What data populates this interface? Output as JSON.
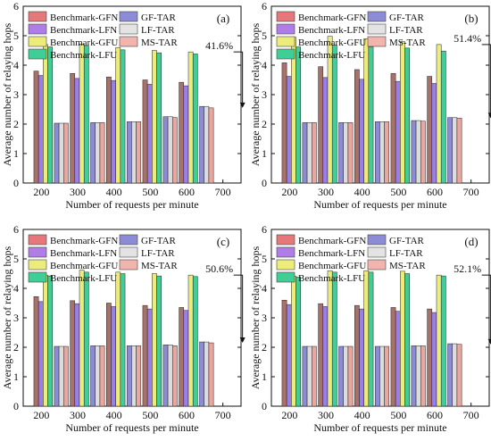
{
  "legend": {
    "labels": [
      "Benchmark-GFN",
      "Benchmark-LFN",
      "Benchmark-GFU",
      "Benchmark-LFU",
      "GF-TAR",
      "LF-TAR",
      "MS-TAR"
    ],
    "colors": [
      "#e6777a",
      "#b07ce6",
      "#ecec7a",
      "#3fcf96",
      "#8c8cd6",
      "#e3e3e3",
      "#f2b5ad"
    ]
  },
  "chart_data": [
    {
      "type": "bar",
      "panel_label": "(a)",
      "xlabel": "Number of requests per minute",
      "ylabel": "Average number of relaying hops",
      "categories": [
        "200",
        "300",
        "400",
        "500",
        "600",
        "700"
      ],
      "ylim": [
        0,
        6
      ],
      "yticks": [
        0,
        1,
        2,
        3,
        4,
        5,
        6
      ],
      "annotation": "41.6%",
      "bar_colors": [
        "#a6726a",
        "#9b7fe8",
        "#ecec7a",
        "#3fcf96",
        "#8c8cd6",
        "#dcdcdc",
        "#e8a7a0"
      ],
      "group_series": [
        [
          "Benchmark-GFN",
          "Benchmark-LFN",
          "Benchmark-GFU",
          "Benchmark-LFU"
        ],
        [
          "GF-TAR",
          "LF-TAR",
          "MS-TAR"
        ],
        [
          "GF-TAR",
          "LF-TAR",
          "MS-TAR"
        ],
        [
          "Benchmark-GFN",
          "Benchmark-LFN",
          "Benchmark-GFU",
          "Benchmark-LFU",
          "GF-TAR",
          "LF-TAR",
          "MS-TAR"
        ],
        [
          "Benchmark-GFN",
          "Benchmark-LFN",
          "Benchmark-GFU",
          "Benchmark-LFU",
          "GF-TAR",
          "LF-TAR",
          "MS-TAR"
        ],
        [
          "Benchmark-GFN",
          "Benchmark-LFN",
          "Benchmark-GFU",
          "Benchmark-LFU",
          "GF-TAR",
          "LF-TAR",
          "MS-TAR"
        ]
      ],
      "group_values": [
        [
          3.8,
          3.65,
          4.7,
          4.62
        ],
        [
          2.03,
          2.03,
          2.03
        ],
        [
          2.05,
          2.05,
          2.05
        ],
        [
          3.6,
          3.48,
          4.6,
          4.52,
          2.08,
          2.08,
          2.08
        ],
        [
          3.5,
          3.35,
          4.5,
          4.42,
          2.25,
          2.25,
          2.22
        ],
        [
          3.42,
          3.3,
          4.45,
          4.38,
          2.6,
          2.6,
          2.55
        ]
      ],
      "extra_groups": [
        {
          "series": [
            "Benchmark-GFN",
            "Benchmark-LFN",
            "Benchmark-GFU",
            "Benchmark-LFU"
          ],
          "values": [
            3.72,
            3.55,
            4.72,
            4.65
          ]
        }
      ]
    },
    {
      "type": "bar",
      "panel_label": "(b)",
      "xlabel": "Number of requests per minute",
      "ylabel": "Average number of relaying hops",
      "categories": [
        "200",
        "300",
        "400",
        "500",
        "600",
        "700"
      ],
      "ylim": [
        0,
        6
      ],
      "yticks": [
        0,
        1,
        2,
        3,
        4,
        5,
        6
      ],
      "annotation": "51.4%",
      "bar_colors": [
        "#a6726a",
        "#9b7fe8",
        "#ecec7a",
        "#3fcf96",
        "#8c8cd6",
        "#dcdcdc",
        "#e8a7a0"
      ],
      "group_series": [
        [
          "Benchmark-GFN",
          "Benchmark-LFN",
          "Benchmark-GFU",
          "Benchmark-LFU"
        ],
        [
          "GF-TAR",
          "LF-TAR",
          "MS-TAR"
        ],
        [
          "GF-TAR",
          "LF-TAR",
          "MS-TAR"
        ],
        [
          "Benchmark-GFN",
          "Benchmark-LFN",
          "Benchmark-GFU",
          "Benchmark-LFU",
          "GF-TAR",
          "LF-TAR",
          "MS-TAR"
        ],
        [
          "Benchmark-GFN",
          "Benchmark-LFN",
          "Benchmark-GFU",
          "Benchmark-LFU",
          "GF-TAR",
          "LF-TAR",
          "MS-TAR"
        ],
        [
          "Benchmark-GFN",
          "Benchmark-LFN",
          "Benchmark-GFU",
          "Benchmark-LFU",
          "GF-TAR",
          "LF-TAR",
          "MS-TAR"
        ]
      ],
      "group_values": [
        [
          4.08,
          3.62,
          4.95,
          4.62
        ],
        [
          2.05,
          2.05,
          2.05
        ],
        [
          2.05,
          2.05,
          2.05
        ],
        [
          3.85,
          3.52,
          4.9,
          4.62,
          2.08,
          2.08,
          2.08
        ],
        [
          3.72,
          3.45,
          4.8,
          4.58,
          2.12,
          2.12,
          2.1
        ],
        [
          3.62,
          3.38,
          4.7,
          4.48,
          2.22,
          2.22,
          2.2
        ]
      ],
      "extra_groups": [
        {
          "series": [
            "Benchmark-GFN",
            "Benchmark-LFN",
            "Benchmark-GFU",
            "Benchmark-LFU"
          ],
          "values": [
            3.95,
            3.58,
            4.98,
            4.68
          ]
        }
      ]
    },
    {
      "type": "bar",
      "panel_label": "(c)",
      "xlabel": "Number of requests per minute",
      "ylabel": "Average number of relaying hops",
      "categories": [
        "200",
        "300",
        "400",
        "500",
        "600",
        "700"
      ],
      "ylim": [
        0,
        6
      ],
      "yticks": [
        0,
        1,
        2,
        3,
        4,
        5,
        6
      ],
      "annotation": "50.6%",
      "bar_colors": [
        "#a6726a",
        "#9b7fe8",
        "#ecec7a",
        "#3fcf96",
        "#8c8cd6",
        "#dcdcdc",
        "#e8a7a0"
      ],
      "group_series": [
        [
          "Benchmark-GFN",
          "Benchmark-LFN",
          "Benchmark-GFU",
          "Benchmark-LFU"
        ],
        [
          "GF-TAR",
          "LF-TAR",
          "MS-TAR"
        ],
        [
          "GF-TAR",
          "LF-TAR",
          "MS-TAR"
        ],
        [
          "Benchmark-GFN",
          "Benchmark-LFN",
          "Benchmark-GFU",
          "Benchmark-LFU",
          "GF-TAR",
          "LF-TAR",
          "MS-TAR"
        ],
        [
          "Benchmark-GFN",
          "Benchmark-LFN",
          "Benchmark-GFU",
          "Benchmark-LFU",
          "GF-TAR",
          "LF-TAR",
          "MS-TAR"
        ],
        [
          "Benchmark-GFN",
          "Benchmark-LFN",
          "Benchmark-GFU",
          "Benchmark-LFU",
          "GF-TAR",
          "LF-TAR",
          "MS-TAR"
        ]
      ],
      "group_values": [
        [
          3.72,
          3.55,
          4.45,
          4.42
        ],
        [
          2.03,
          2.03,
          2.03
        ],
        [
          2.05,
          2.05,
          2.05
        ],
        [
          3.5,
          3.38,
          4.55,
          4.5,
          2.05,
          2.05,
          2.05
        ],
        [
          3.42,
          3.3,
          4.5,
          4.42,
          2.08,
          2.08,
          2.05
        ],
        [
          3.35,
          3.25,
          4.45,
          4.4,
          2.18,
          2.18,
          2.15
        ]
      ],
      "extra_groups": [
        {
          "series": [
            "Benchmark-GFN",
            "Benchmark-LFN",
            "Benchmark-GFU",
            "Benchmark-LFU"
          ],
          "values": [
            3.58,
            3.48,
            4.62,
            4.55
          ]
        }
      ]
    },
    {
      "type": "bar",
      "panel_label": "(d)",
      "xlabel": "Number of requests per minute",
      "ylabel": "Average number of relaying hops",
      "categories": [
        "200",
        "300",
        "400",
        "500",
        "600",
        "700"
      ],
      "ylim": [
        0,
        6
      ],
      "yticks": [
        0,
        1,
        2,
        3,
        4,
        5,
        6
      ],
      "annotation": "52.1%",
      "bar_colors": [
        "#a6726a",
        "#9b7fe8",
        "#ecec7a",
        "#3fcf96",
        "#8c8cd6",
        "#dcdcdc",
        "#e8a7a0"
      ],
      "group_series": [
        [
          "Benchmark-GFN",
          "Benchmark-LFN",
          "Benchmark-GFU",
          "Benchmark-LFU"
        ],
        [
          "GF-TAR",
          "LF-TAR",
          "MS-TAR"
        ],
        [
          "GF-TAR",
          "LF-TAR",
          "MS-TAR"
        ],
        [
          "Benchmark-GFN",
          "Benchmark-LFN",
          "Benchmark-GFU",
          "Benchmark-LFU",
          "GF-TAR",
          "LF-TAR",
          "MS-TAR"
        ],
        [
          "Benchmark-GFN",
          "Benchmark-LFN",
          "Benchmark-GFU",
          "Benchmark-LFU",
          "GF-TAR",
          "LF-TAR",
          "MS-TAR"
        ],
        [
          "Benchmark-GFN",
          "Benchmark-LFN",
          "Benchmark-GFU",
          "Benchmark-LFU",
          "GF-TAR",
          "LF-TAR",
          "MS-TAR"
        ]
      ],
      "group_values": [
        [
          3.6,
          3.45,
          4.42,
          4.38
        ],
        [
          2.03,
          2.03,
          2.03
        ],
        [
          2.03,
          2.03,
          2.03
        ],
        [
          3.42,
          3.3,
          4.6,
          4.55,
          2.03,
          2.03,
          2.03
        ],
        [
          3.35,
          3.22,
          4.58,
          4.5,
          2.05,
          2.05,
          2.05
        ],
        [
          3.3,
          3.18,
          4.45,
          4.42,
          2.12,
          2.12,
          2.1
        ]
      ],
      "extra_groups": [
        {
          "series": [
            "Benchmark-GFN",
            "Benchmark-LFN",
            "Benchmark-GFU",
            "Benchmark-LFU"
          ],
          "values": [
            3.48,
            3.38,
            4.6,
            4.55
          ]
        }
      ]
    }
  ]
}
